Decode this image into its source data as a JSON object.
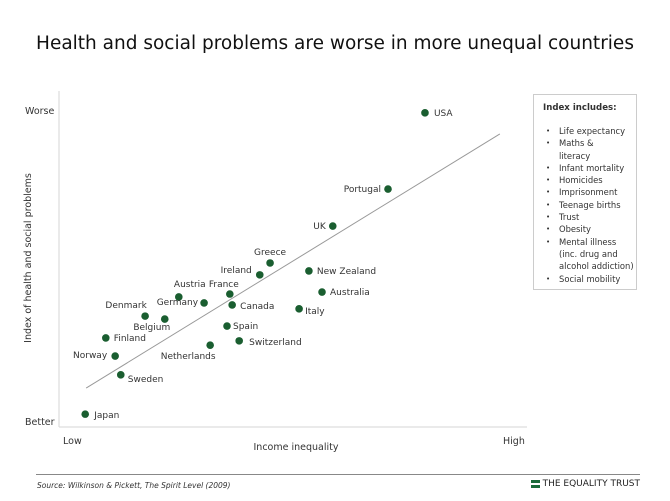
{
  "colors": {
    "point": "#1a5e30",
    "trend": "#999999",
    "axis": "#dddddd",
    "brand": "#1a6b3a"
  },
  "chart_data": {
    "type": "scatter",
    "title": "Health and social problems are worse in more unequal countries",
    "xlabel": "Income inequality",
    "ylabel": "Index of health and social problems",
    "x_tick_labels": {
      "low": "Low",
      "high": "High"
    },
    "y_tick_labels": {
      "low": "Better",
      "high": "Worse"
    },
    "xlim": [
      0,
      10
    ],
    "ylim": [
      0,
      10
    ],
    "grid": false,
    "points": [
      {
        "label": "USA",
        "x": 7.82,
        "y": 9.52
      },
      {
        "label": "Portugal",
        "x": 7.03,
        "y": 7.21
      },
      {
        "label": "UK",
        "x": 5.85,
        "y": 6.09
      },
      {
        "label": "Greece",
        "x": 4.51,
        "y": 4.97
      },
      {
        "label": "Ireland",
        "x": 4.29,
        "y": 4.61
      },
      {
        "label": "New Zealand",
        "x": 5.34,
        "y": 4.73
      },
      {
        "label": "Australia",
        "x": 5.62,
        "y": 4.09
      },
      {
        "label": "Austria",
        "x": 2.56,
        "y": 3.94
      },
      {
        "label": "France",
        "x": 3.65,
        "y": 4.03
      },
      {
        "label": "Germany",
        "x": 3.1,
        "y": 3.76
      },
      {
        "label": "Canada",
        "x": 3.7,
        "y": 3.7
      },
      {
        "label": "Italy",
        "x": 5.13,
        "y": 3.58
      },
      {
        "label": "Denmark",
        "x": 1.84,
        "y": 3.36
      },
      {
        "label": "Belgium",
        "x": 2.26,
        "y": 3.27
      },
      {
        "label": "Spain",
        "x": 3.59,
        "y": 3.06
      },
      {
        "label": "Finland",
        "x": 1.0,
        "y": 2.7
      },
      {
        "label": "Switzerland",
        "x": 3.85,
        "y": 2.61
      },
      {
        "label": "Netherlands",
        "x": 3.23,
        "y": 2.48
      },
      {
        "label": "Norway",
        "x": 1.2,
        "y": 2.15
      },
      {
        "label": "Sweden",
        "x": 1.32,
        "y": 1.58
      },
      {
        "label": "Japan",
        "x": 0.56,
        "y": 0.39
      }
    ],
    "trendline": {
      "x": [
        0.58,
        9.42
      ],
      "y": [
        1.18,
        8.88
      ]
    }
  },
  "legend": {
    "title": "Index includes:",
    "items": [
      "Life expectancy",
      "Maths & literacy",
      "Infant mortality",
      "Homicides",
      "Imprisonment",
      "Teenage births",
      "Trust",
      "Obesity",
      "Mental illness (inc. drug and alcohol addiction)",
      "Social mobility"
    ]
  },
  "footer": {
    "source": "Source: Wilkinson & Pickett, The Spirit Level (2009)",
    "brand": "THE EQUALITY TRUST"
  }
}
